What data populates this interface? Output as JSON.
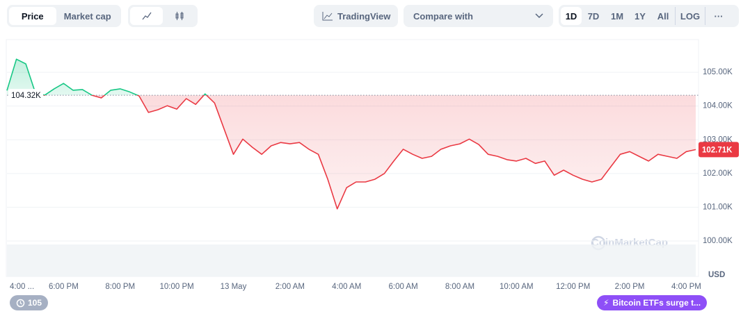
{
  "toolbar": {
    "tabs": [
      "Price",
      "Market cap"
    ],
    "tradingview": "TradingView",
    "compare": "Compare with",
    "ranges": [
      "1D",
      "7D",
      "1M",
      "1Y",
      "All",
      "LOG"
    ],
    "more": "···"
  },
  "chart_data": {
    "type": "line",
    "currency": "USD",
    "watermark": "CoinMarketCap",
    "categories": [
      "4:00 ...",
      null,
      null,
      null,
      null,
      null,
      "6:00 PM",
      null,
      null,
      null,
      null,
      null,
      "8:00 PM",
      null,
      null,
      null,
      null,
      null,
      "10:00 PM",
      null,
      null,
      null,
      null,
      null,
      "13 May",
      null,
      null,
      null,
      null,
      null,
      "2:00 AM",
      null,
      null,
      null,
      null,
      null,
      "4:00 AM",
      null,
      null,
      null,
      null,
      null,
      "6:00 AM",
      null,
      null,
      null,
      null,
      null,
      "8:00 AM",
      null,
      null,
      null,
      null,
      null,
      "10:00 AM",
      null,
      null,
      null,
      null,
      null,
      "12:00 PM",
      null,
      null,
      null,
      null,
      null,
      "2:00 PM",
      null,
      null,
      null,
      null,
      null,
      "4:00 PM",
      null
    ],
    "values": [
      104460,
      105390,
      105250,
      104400,
      104320,
      104510,
      104670,
      104470,
      104490,
      104320,
      104240,
      104470,
      104510,
      104420,
      104300,
      103810,
      103890,
      104010,
      103910,
      104220,
      104050,
      104360,
      104090,
      103330,
      102570,
      103020,
      102780,
      102570,
      102820,
      102920,
      102880,
      102920,
      102720,
      102570,
      101830,
      100950,
      101580,
      101750,
      101750,
      101830,
      102000,
      102370,
      102720,
      102570,
      102450,
      102510,
      102720,
      102820,
      102880,
      103020,
      102860,
      102570,
      102510,
      102410,
      102370,
      102450,
      102300,
      102370,
      101950,
      102100,
      101950,
      101830,
      101750,
      101830,
      102200,
      102570,
      102650,
      102510,
      102370,
      102570,
      102510,
      102450,
      102650,
      102710
    ],
    "up_color": "#16c784",
    "down_color": "#ea3943",
    "reference": {
      "value": 104320,
      "label": "104.32K"
    },
    "last_price": {
      "value": 102710,
      "label": "102.71K"
    },
    "ylim": [
      98950,
      105970
    ],
    "yticks": [
      {
        "value": 100000,
        "label": "100.00K"
      },
      {
        "value": 101000,
        "label": "101.00K"
      },
      {
        "value": 102000,
        "label": "102.00K"
      },
      {
        "value": 103000,
        "label": "103.00K"
      },
      {
        "value": 104000,
        "label": "104.00K"
      },
      {
        "value": 105000,
        "label": "105.00K"
      }
    ],
    "grid": true
  },
  "footer": {
    "history": "105",
    "news": "Bitcoin ETFs surge t..."
  }
}
